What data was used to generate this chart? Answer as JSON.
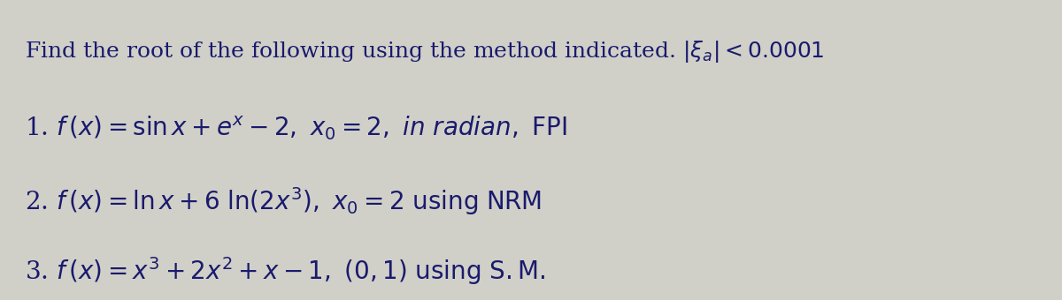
{
  "background_color": "#d0d0c8",
  "text_color": "#1a1a6e",
  "title": "Find the root of the following using the method indicated. $|\\xi_a| < 0.0001$",
  "line1": "1. $f(x) = \\sin x + e^x - 2,\\ x_0 = 2,\\ \\mathit{in\\ radian},\\ \\mathrm{FPI}$",
  "line2": "2. $f(x) = \\ln x + 6\\ \\ln(2x^3),\\ x_0 = 2\\ \\mathrm{using\\ NRM}$",
  "line3": "3. $f(x) = x^3 + 2x^2 + x - 1,\\ (0,1)\\ \\mathrm{using\\ S.M.}$",
  "title_fontsize": 18,
  "line_fontsize": 20,
  "figwidth": 12.0,
  "figheight": 3.4,
  "dpi": 100
}
